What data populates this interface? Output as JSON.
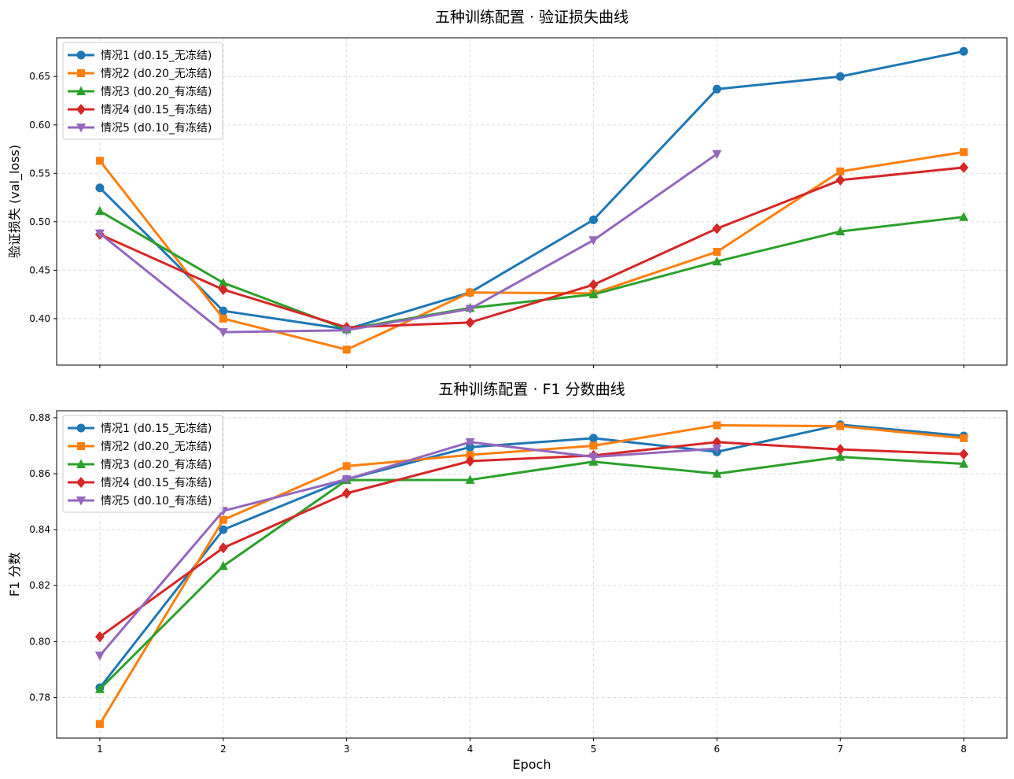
{
  "shared": {
    "xlabel": "Epoch",
    "x": [
      1,
      2,
      3,
      4,
      5,
      6,
      7,
      8
    ],
    "colors": [
      "#1f77b4",
      "#ff7f0e",
      "#2ca02c",
      "#d62728",
      "#9467bd"
    ],
    "markers": [
      "circle",
      "square",
      "triangle-up",
      "diamond",
      "triangle-down"
    ]
  },
  "chart_data": [
    {
      "type": "line",
      "title": "五种训练配置 · 验证损失曲线",
      "xlabel": "",
      "ylabel": "验证损失 (val_loss)",
      "xlim": [
        0.65,
        8.35
      ],
      "ylim": [
        0.352,
        0.69
      ],
      "yticks": [
        0.4,
        0.45,
        0.5,
        0.55,
        0.6,
        0.65
      ],
      "ytick_labels": [
        "0.40",
        "0.45",
        "0.50",
        "0.55",
        "0.60",
        "0.65"
      ],
      "grid": true,
      "legend_position": "upper-left",
      "series": [
        {
          "name": "情况1 (d0.15_无冻结)",
          "x": [
            1,
            2,
            3,
            4,
            5,
            6,
            7,
            8
          ],
          "values": [
            0.535,
            0.408,
            0.389,
            0.427,
            0.502,
            0.637,
            0.65,
            0.676
          ]
        },
        {
          "name": "情况2 (d0.20_无冻结)",
          "x": [
            1,
            2,
            3,
            4,
            5,
            6,
            7,
            8
          ],
          "values": [
            0.563,
            0.4,
            0.368,
            0.427,
            0.426,
            0.469,
            0.552,
            0.572
          ]
        },
        {
          "name": "情况3 (d0.20_有冻结)",
          "x": [
            1,
            2,
            3,
            4,
            5,
            6,
            7,
            8
          ],
          "values": [
            0.511,
            0.437,
            0.389,
            0.411,
            0.425,
            0.459,
            0.49,
            0.505
          ]
        },
        {
          "name": "情况4 (d0.15_有冻结)",
          "x": [
            1,
            2,
            3,
            4,
            5,
            6,
            7,
            8
          ],
          "values": [
            0.487,
            0.43,
            0.391,
            0.396,
            0.435,
            0.493,
            0.543,
            0.556
          ]
        },
        {
          "name": "情况5 (d0.10_有冻结)",
          "x": [
            1,
            2,
            3,
            4,
            5,
            6
          ],
          "values": [
            0.488,
            0.386,
            0.388,
            0.41,
            0.481,
            0.57
          ]
        }
      ]
    },
    {
      "type": "line",
      "title": "五种训练配置 · F1 分数曲线",
      "xlabel": "Epoch",
      "ylabel": "F1 分数",
      "xlim": [
        0.65,
        8.35
      ],
      "ylim": [
        0.7655,
        0.8825
      ],
      "yticks": [
        0.78,
        0.8,
        0.82,
        0.84,
        0.86,
        0.88
      ],
      "ytick_labels": [
        "0.78",
        "0.80",
        "0.82",
        "0.84",
        "0.86",
        "0.88"
      ],
      "grid": true,
      "legend_position": "upper-left",
      "series": [
        {
          "name": "情况1 (d0.15_无冻结)",
          "x": [
            1,
            2,
            3,
            4,
            5,
            6,
            7,
            8
          ],
          "values": [
            0.7835,
            0.84,
            0.858,
            0.8695,
            0.8727,
            0.8678,
            0.8775,
            0.8735
          ]
        },
        {
          "name": "情况2 (d0.20_无冻结)",
          "x": [
            1,
            2,
            3,
            4,
            5,
            6,
            7,
            8
          ],
          "values": [
            0.7705,
            0.8435,
            0.8627,
            0.8667,
            0.87,
            0.8773,
            0.877,
            0.8727
          ]
        },
        {
          "name": "情况3 (d0.20_有冻结)",
          "x": [
            1,
            2,
            3,
            4,
            5,
            6,
            7,
            8
          ],
          "values": [
            0.783,
            0.827,
            0.8577,
            0.8578,
            0.8643,
            0.86,
            0.866,
            0.8635
          ]
        },
        {
          "name": "情况4 (d0.15_有冻结)",
          "x": [
            1,
            2,
            3,
            4,
            5,
            6,
            7,
            8
          ],
          "values": [
            0.8017,
            0.8335,
            0.853,
            0.8645,
            0.8665,
            0.8713,
            0.8687,
            0.867
          ]
        },
        {
          "name": "情况5 (d0.10_有冻结)",
          "x": [
            1,
            2,
            3,
            4,
            5,
            6
          ],
          "values": [
            0.795,
            0.8467,
            0.858,
            0.8713,
            0.866,
            0.869
          ]
        }
      ]
    }
  ]
}
